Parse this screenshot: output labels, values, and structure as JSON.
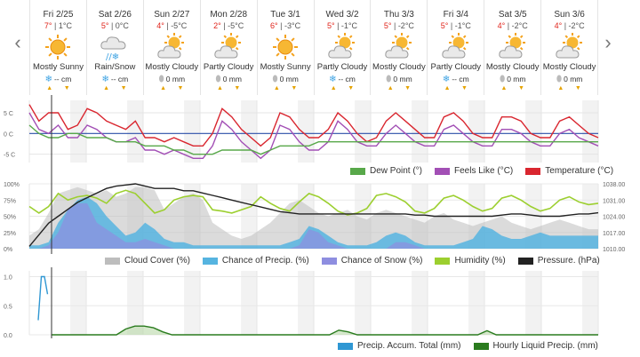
{
  "nav": {
    "prev": "‹",
    "next": "›"
  },
  "days": [
    {
      "name": "Fri 2/25",
      "hi": "7°",
      "lo": "1°C",
      "icon": "sunny-icon",
      "cond": "Mostly Sunny",
      "precip_type": "snow",
      "precip": "-- cm"
    },
    {
      "name": "Sat 2/26",
      "hi": "5°",
      "lo": "0°C",
      "icon": "rain-snow-icon",
      "cond": "Rain/Snow",
      "precip_type": "snow",
      "precip": "-- cm"
    },
    {
      "name": "Sun 2/27",
      "hi": "4°",
      "lo": "-5°C",
      "icon": "partly-cloudy-icon",
      "cond": "Mostly Cloudy",
      "precip_type": "rain",
      "precip": "0 mm"
    },
    {
      "name": "Mon 2/28",
      "hi": "2°",
      "lo": "-5°C",
      "icon": "partly-cloudy-icon",
      "cond": "Partly Cloudy",
      "precip_type": "rain",
      "precip": "0 mm"
    },
    {
      "name": "Tue 3/1",
      "hi": "6°",
      "lo": "-3°C",
      "icon": "sunny-icon",
      "cond": "Mostly Sunny",
      "precip_type": "rain",
      "precip": "0 mm"
    },
    {
      "name": "Wed 3/2",
      "hi": "5°",
      "lo": "-1°C",
      "icon": "partly-cloudy-icon",
      "cond": "Partly Cloudy",
      "precip_type": "snow",
      "precip": "-- cm"
    },
    {
      "name": "Thu 3/3",
      "hi": "5°",
      "lo": "-2°C",
      "icon": "partly-cloudy-icon",
      "cond": "Mostly Cloudy",
      "precip_type": "rain",
      "precip": "0 mm"
    },
    {
      "name": "Fri 3/4",
      "hi": "5°",
      "lo": "-1°C",
      "icon": "partly-cloudy-icon",
      "cond": "Partly Cloudy",
      "precip_type": "snow",
      "precip": "-- cm"
    },
    {
      "name": "Sat 3/5",
      "hi": "4°",
      "lo": "-2°C",
      "icon": "partly-cloudy-icon",
      "cond": "Mostly Cloudy",
      "precip_type": "rain",
      "precip": "0 mm"
    },
    {
      "name": "Sun 3/6",
      "hi": "4°",
      "lo": "-2°C",
      "icon": "partly-cloudy-icon",
      "cond": "Mostly Cloudy",
      "precip_type": "rain",
      "precip": "0 mm"
    }
  ],
  "colors": {
    "temperature": "#d9262f",
    "feels_like": "#a24fb5",
    "dew_point": "#58a84a",
    "cloud_cover": "#bdbdbd",
    "chance_precip": "#56b4e0",
    "chance_snow": "#8e8ee0",
    "humidity": "#9ccf2f",
    "pressure": "#222222",
    "precip_accum": "#2f97d3",
    "hourly_liquid": "#2a7b1e",
    "zero_line": "#2a4ea8"
  },
  "chart_data": [
    {
      "type": "line",
      "x_labels": [
        "Fri 2/25",
        "Sat 2/26",
        "Sun 2/27",
        "Mon 2/28",
        "Tue 3/1",
        "Wed 3/2",
        "Thu 3/3",
        "Fri 3/4",
        "Sat 3/5",
        "Sun 3/6"
      ],
      "y_ticks": [
        "5 C",
        "0 C",
        "-5 C"
      ],
      "ylim": [
        -7,
        8
      ],
      "series": [
        {
          "name": "Temperature (°C)",
          "key": "temperature",
          "values": [
            7,
            3,
            5,
            5,
            1,
            2,
            6,
            5,
            3,
            2,
            1,
            3,
            -1,
            -1,
            -2,
            -1,
            -2,
            -3,
            -3,
            0,
            6,
            4,
            1,
            -1,
            -3,
            -1,
            5,
            4,
            1,
            -1,
            -1,
            1,
            5,
            3,
            0,
            -2,
            -1,
            3,
            5,
            3,
            1,
            -1,
            -1,
            4,
            5,
            3,
            0,
            -1,
            -1,
            4,
            4,
            3,
            0,
            -1,
            -1,
            3,
            4,
            2,
            0,
            -1
          ]
        },
        {
          "name": "Feels Like (°C)",
          "key": "feels_like",
          "values": [
            5,
            1,
            0,
            2,
            -1,
            -1,
            2,
            1,
            -1,
            -2,
            -2,
            -1,
            -4,
            -4,
            -5,
            -4,
            -5,
            -6,
            -6,
            -3,
            3,
            1,
            -2,
            -4,
            -6,
            -4,
            2,
            1,
            -2,
            -4,
            -4,
            -2,
            3,
            1,
            -2,
            -3,
            -3,
            0,
            2,
            0,
            -2,
            -3,
            -3,
            1,
            2,
            0,
            -2,
            -3,
            -3,
            1,
            1,
            0,
            -2,
            -3,
            -3,
            0,
            1,
            -1,
            -2,
            -3
          ]
        },
        {
          "name": "Dew Point (°)",
          "key": "dew_point",
          "values": [
            2,
            0,
            -1,
            -1,
            0,
            0,
            -1,
            -1,
            -1,
            -2,
            -2,
            -2,
            -3,
            -3,
            -3,
            -4,
            -4,
            -5,
            -5,
            -5,
            -4,
            -4,
            -4,
            -4,
            -5,
            -4,
            -3,
            -3,
            -3,
            -3,
            -2,
            -2,
            -2,
            -2,
            -2,
            -2,
            -2,
            -2,
            -2,
            -2,
            -2,
            -2,
            -2,
            -2,
            -2,
            -2,
            -2,
            -2,
            -2,
            -2,
            -2,
            -2,
            -2,
            -2,
            -2,
            -2,
            -2,
            -2,
            -2,
            -2
          ]
        }
      ]
    },
    {
      "type": "area",
      "y_ticks_left": [
        "100%",
        "75%",
        "50%",
        "25%",
        "0%"
      ],
      "y_ticks_right": [
        "1038.00",
        "1031.00",
        "1024.00",
        "1017.00",
        "1010.00"
      ],
      "ylim": [
        0,
        100
      ],
      "pressure_lim": [
        1010,
        1038
      ],
      "series": [
        {
          "name": "Cloud Cover (%)",
          "key": "cloud_cover",
          "values": [
            20,
            30,
            55,
            85,
            90,
            95,
            90,
            85,
            90,
            80,
            85,
            95,
            95,
            90,
            60,
            70,
            80,
            85,
            75,
            40,
            30,
            20,
            15,
            20,
            30,
            40,
            55,
            70,
            75,
            65,
            55,
            50,
            55,
            60,
            50,
            45,
            55,
            60,
            55,
            50,
            45,
            40,
            50,
            55,
            45,
            40,
            35,
            40,
            45,
            50,
            40,
            35,
            30,
            35,
            40,
            45,
            40,
            35,
            30,
            30
          ]
        },
        {
          "name": "Chance of Precip. (%)",
          "key": "chance_precip",
          "values": [
            5,
            5,
            10,
            40,
            60,
            75,
            80,
            70,
            50,
            35,
            20,
            25,
            40,
            30,
            15,
            10,
            10,
            5,
            5,
            5,
            5,
            5,
            5,
            5,
            5,
            5,
            5,
            10,
            15,
            35,
            30,
            20,
            10,
            5,
            5,
            5,
            10,
            20,
            25,
            20,
            10,
            5,
            5,
            5,
            5,
            10,
            15,
            35,
            30,
            20,
            15,
            15,
            20,
            25,
            20,
            20,
            20,
            20,
            20,
            20
          ]
        },
        {
          "name": "Chance of Snow (%)",
          "key": "chance_snow",
          "values": [
            0,
            0,
            5,
            25,
            60,
            70,
            70,
            40,
            30,
            20,
            10,
            10,
            15,
            10,
            5,
            0,
            0,
            0,
            0,
            0,
            0,
            0,
            0,
            0,
            0,
            0,
            0,
            0,
            5,
            30,
            25,
            10,
            5,
            0,
            0,
            0,
            0,
            0,
            10,
            10,
            5,
            0,
            0,
            0,
            0,
            0,
            0,
            0,
            0,
            0,
            0,
            0,
            0,
            0,
            0,
            0,
            0,
            0,
            0,
            0
          ]
        },
        {
          "name": "Humidity (%)",
          "key": "humidity",
          "values": [
            65,
            55,
            65,
            85,
            75,
            80,
            82,
            78,
            70,
            85,
            90,
            85,
            70,
            55,
            60,
            75,
            80,
            82,
            80,
            60,
            58,
            55,
            60,
            65,
            80,
            70,
            62,
            58,
            72,
            85,
            80,
            70,
            58,
            52,
            55,
            62,
            82,
            85,
            80,
            72,
            58,
            55,
            62,
            78,
            82,
            75,
            65,
            58,
            62,
            78,
            82,
            75,
            65,
            58,
            62,
            75,
            80,
            72,
            68,
            70
          ]
        },
        {
          "name": "Pressure. (hPa)",
          "key": "pressure",
          "values": [
            1011,
            1016,
            1021,
            1024,
            1027,
            1030,
            1032,
            1034,
            1036,
            1037,
            1037.5,
            1038,
            1037,
            1036,
            1036,
            1036,
            1035,
            1035,
            1034,
            1033,
            1032,
            1031,
            1030,
            1029,
            1028,
            1027,
            1026,
            1025.5,
            1025,
            1025,
            1025,
            1025,
            1025,
            1025,
            1025,
            1025,
            1025,
            1025,
            1025,
            1025,
            1024.5,
            1024.5,
            1024,
            1024,
            1024,
            1024,
            1024,
            1024,
            1024,
            1024.5,
            1025,
            1025,
            1024.5,
            1024,
            1024,
            1024,
            1024.5,
            1025,
            1025,
            1025.5
          ]
        }
      ]
    },
    {
      "type": "area",
      "y_ticks": [
        "1.0",
        "0.5",
        "0.0"
      ],
      "ylim": [
        0,
        1.1
      ],
      "series": [
        {
          "name": "Precip. Accum. Total (mm)",
          "key": "precip_accum",
          "values": [
            0.25,
            1.0,
            1.0,
            0.7
          ]
        },
        {
          "name": "Hourly Liquid Precip. (mm)",
          "key": "hourly_liquid",
          "values": [
            0,
            0,
            0,
            0,
            0,
            0,
            0,
            0,
            0.1,
            0.15,
            0.15,
            0.12,
            0.05,
            0,
            0,
            0,
            0,
            0,
            0,
            0,
            0,
            0,
            0,
            0,
            0,
            0,
            0,
            0,
            0,
            0,
            0,
            0.08,
            0.05,
            0,
            0,
            0,
            0,
            0,
            0,
            0,
            0,
            0,
            0,
            0,
            0,
            0,
            0,
            0.07,
            0,
            0,
            0,
            0,
            0,
            0,
            0,
            0,
            0,
            0,
            0,
            0
          ]
        }
      ]
    }
  ]
}
